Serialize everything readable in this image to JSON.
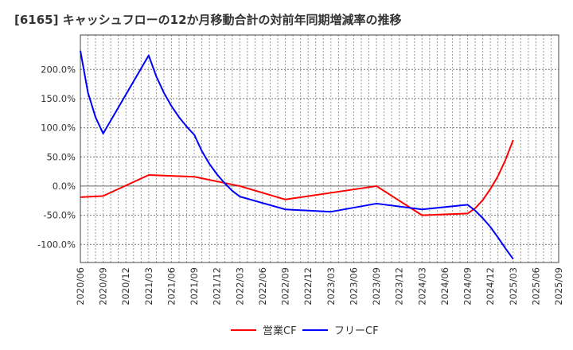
{
  "chart_data": {
    "type": "line",
    "title": "[6165]  キャッシュフローの12か月移動合計の対前年同期増減率の推移",
    "xlabel": "",
    "ylabel": "",
    "ylim": [
      -131,
      259
    ],
    "yticks": [
      200,
      150,
      100,
      50,
      0,
      -50,
      -100
    ],
    "ytick_labels": [
      "200.0%",
      "150.0%",
      "100.0%",
      "50.0%",
      "0.0%",
      "-50.0%",
      "-100.0%"
    ],
    "xticks": [
      "2020/06",
      "2020/09",
      "2020/12",
      "2021/03",
      "2021/06",
      "2021/09",
      "2021/12",
      "2022/03",
      "2022/06",
      "2022/09",
      "2022/12",
      "2023/03",
      "2023/06",
      "2023/09",
      "2023/12",
      "2024/03",
      "2024/06",
      "2024/09",
      "2024/12",
      "2025/03",
      "2025/06",
      "2025/09"
    ],
    "x_unit": "months since 2020/06",
    "grid": true,
    "legend_position": "bottom",
    "series": [
      {
        "name": "営業CF",
        "color": "#ff0000",
        "x": [
          0,
          3,
          9,
          15,
          21,
          27,
          39,
          45,
          51,
          52,
          53,
          54,
          55,
          56,
          57
        ],
        "values": [
          -19,
          -17,
          19,
          16,
          0,
          -23,
          0,
          -50,
          -47,
          -38,
          -24,
          -5,
          17,
          45,
          79
        ]
      },
      {
        "name": "フリーCF",
        "color": "#0000ff",
        "x": [
          0,
          1,
          2,
          3,
          9,
          10,
          11,
          12,
          13,
          14,
          15,
          16,
          17,
          18,
          19,
          20,
          21,
          27,
          33,
          39,
          45,
          51,
          52,
          53,
          54,
          55,
          56,
          57
        ],
        "values": [
          232,
          160,
          118,
          90,
          224,
          188,
          160,
          137,
          118,
          102,
          88,
          60,
          38,
          20,
          5,
          -8,
          -18,
          -40,
          -44,
          -30,
          -40,
          -32,
          -42,
          -55,
          -70,
          -88,
          -107,
          -125
        ]
      }
    ]
  }
}
